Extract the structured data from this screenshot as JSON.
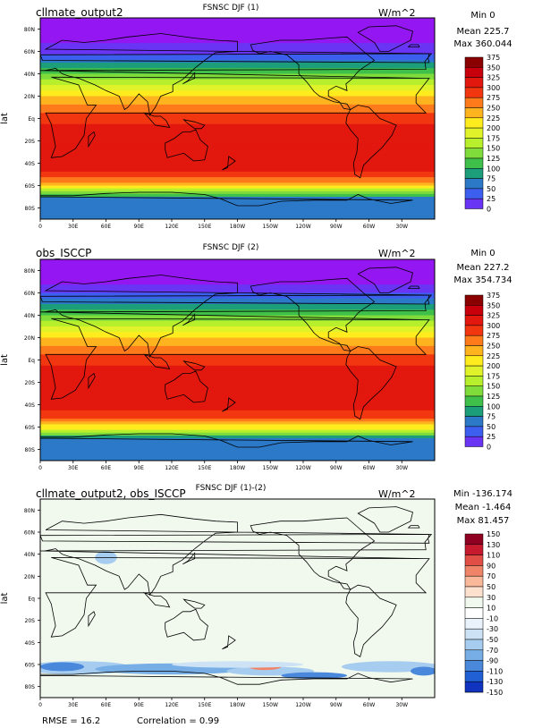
{
  "panels": [
    {
      "left_title": "cllmate_output2",
      "center_title": "FSNSC DJF (1)",
      "units": "W/m^2",
      "stats": [
        "Min 0",
        "Mean 225.7",
        "Max 360.044"
      ],
      "cbar_labels": [
        "375",
        "350",
        "325",
        "300",
        "275",
        "250",
        "225",
        "200",
        "175",
        "150",
        "125",
        "100",
        "75",
        "50",
        "25",
        "0"
      ],
      "scale": "abs",
      "ylabel": "lat"
    },
    {
      "left_title": "obs_ISCCP",
      "center_title": "FSNSC DJF (2)",
      "units": "W/m^2",
      "stats": [
        "Min 0",
        "Mean 227.2",
        "Max 354.734"
      ],
      "cbar_labels": [
        "375",
        "350",
        "325",
        "300",
        "275",
        "250",
        "225",
        "200",
        "175",
        "150",
        "125",
        "100",
        "75",
        "50",
        "25",
        "0"
      ],
      "scale": "abs",
      "ylabel": "lat"
    },
    {
      "left_title": "cllmate_output2, obs_ISCCP",
      "center_title": "FSNSC DJF (1)-(2)",
      "units": "W/m^2",
      "stats": [
        "Min -136.174",
        "Mean -1.464",
        "Max 81.457"
      ],
      "cbar_labels": [
        "150",
        "130",
        "110",
        "90",
        "70",
        "50",
        "30",
        "10",
        "-10",
        "-30",
        "-50",
        "-70",
        "-90",
        "-110",
        "-130",
        "-150"
      ],
      "scale": "diff",
      "ylabel": "lat"
    }
  ],
  "footer": {
    "rmse": "RMSE = 16.2",
    "correlation": "Correlation = 0.99"
  },
  "lat_ticks": [
    "80N",
    "60N",
    "40N",
    "20N",
    "Eq",
    "20S",
    "40S",
    "60S",
    "80S"
  ],
  "lon_ticks": [
    "0",
    "30E",
    "60E",
    "90E",
    "120E",
    "150E",
    "180W",
    "150W",
    "120W",
    "90W",
    "60W",
    "30W"
  ],
  "colors": {
    "abs": [
      "#8b0000",
      "#c8000c",
      "#e2170e",
      "#f2360f",
      "#ff7a1a",
      "#ffb31f",
      "#ffec1f",
      "#dff22a",
      "#b8ef2d",
      "#7fdc3a",
      "#3fc04a",
      "#1d9e7a",
      "#2c79c8",
      "#3d5ff0",
      "#6a34f5",
      "#9417f2"
    ],
    "diff": [
      "#8f0021",
      "#c71a2f",
      "#e04e45",
      "#ef8468",
      "#f9b89a",
      "#fde1cf",
      "#f1f9ee",
      "#ffffff",
      "#eaf3fb",
      "#cde3f5",
      "#a6cdef",
      "#78aee6",
      "#4a88dc",
      "#2160d4",
      "#1034bf",
      "#0a16a8"
    ]
  },
  "chart_data": [
    {
      "type": "heatmap",
      "title": "FSNSC DJF (1)",
      "subtitle": "cllmate_output2",
      "units": "W/m^2",
      "ylabel": "lat",
      "summary": {
        "min": 0,
        "mean": 225.7,
        "max": 360.044
      },
      "levels": [
        0,
        25,
        50,
        75,
        100,
        125,
        150,
        175,
        200,
        225,
        250,
        275,
        300,
        325,
        350,
        375
      ],
      "zonal_mean_profile": {
        "lat": [
          90,
          80,
          70,
          60,
          50,
          40,
          30,
          20,
          10,
          0,
          -10,
          -20,
          -30,
          -40,
          -50,
          -60,
          -70,
          -80,
          -90
        ],
        "value": [
          0,
          5,
          20,
          45,
          100,
          150,
          205,
          250,
          290,
          318,
          335,
          340,
          340,
          335,
          320,
          230,
          90,
          80,
          75
        ]
      }
    },
    {
      "type": "heatmap",
      "title": "FSNSC DJF (2)",
      "subtitle": "obs_ISCCP",
      "units": "W/m^2",
      "ylabel": "lat",
      "summary": {
        "min": 0,
        "mean": 227.2,
        "max": 354.734
      },
      "levels": [
        0,
        25,
        50,
        75,
        100,
        125,
        150,
        175,
        200,
        225,
        250,
        275,
        300,
        325,
        350,
        375
      ],
      "zonal_mean_profile": {
        "lat": [
          90,
          80,
          70,
          60,
          50,
          40,
          30,
          20,
          10,
          0,
          -10,
          -20,
          -30,
          -40,
          -50,
          -60,
          -70,
          -80,
          -90
        ],
        "value": [
          0,
          5,
          20,
          50,
          105,
          155,
          205,
          250,
          290,
          318,
          332,
          338,
          338,
          330,
          315,
          225,
          85,
          80,
          75
        ]
      }
    },
    {
      "type": "heatmap",
      "title": "FSNSC DJF (1)-(2)",
      "subtitle": "cllmate_output2, obs_ISCCP",
      "units": "W/m^2",
      "ylabel": "lat",
      "summary": {
        "min": -136.174,
        "mean": -1.464,
        "max": 81.457,
        "rmse": 16.2,
        "correlation": 0.99
      },
      "levels": [
        -150,
        -130,
        -110,
        -90,
        -70,
        -50,
        -30,
        -10,
        10,
        30,
        50,
        70,
        90,
        110,
        130,
        150
      ]
    }
  ]
}
